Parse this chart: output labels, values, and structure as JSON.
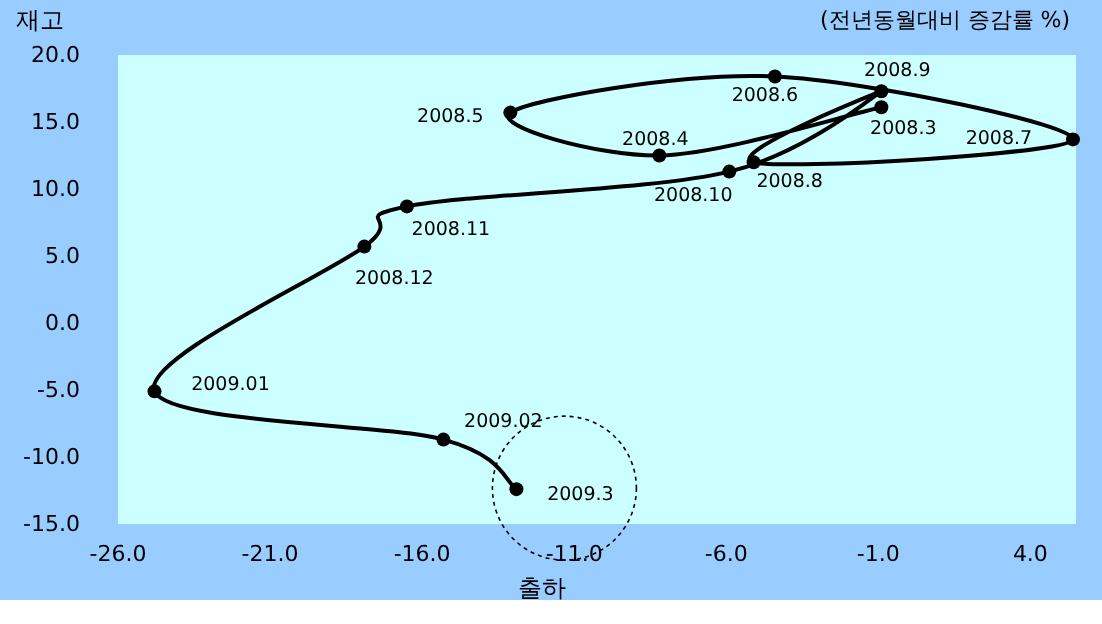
{
  "chart_data": {
    "type": "line",
    "xlabel": "출하",
    "ylabel": "재고",
    "annotations": [
      "(전년동월대비 증감률 %)",
      {
        "text": "2008.3",
        "x": -0.9,
        "y": 16.1
      },
      {
        "text": "2008.4",
        "x": -8.2,
        "y": 12.5
      },
      {
        "text": "2008.5",
        "x": -13.1,
        "y": 15.7
      },
      {
        "text": "2008.6",
        "x": -4.4,
        "y": 18.4
      },
      {
        "text": "2008.7",
        "x": 5.4,
        "y": 13.7
      },
      {
        "text": "2008.8",
        "x": -5.1,
        "y": 12.0
      },
      {
        "text": "2008.9",
        "x": -0.9,
        "y": 17.3
      },
      {
        "text": "2008.10",
        "x": -5.9,
        "y": 11.3
      },
      {
        "text": "2008.11",
        "x": -16.5,
        "y": 8.7
      },
      {
        "text": "2008.12",
        "x": -17.9,
        "y": 5.7
      },
      {
        "text": "2009.01",
        "x": -24.8,
        "y": -5.1
      },
      {
        "text": "2009.02",
        "x": -15.3,
        "y": -8.7
      },
      {
        "text": "2009.3",
        "x": -12.9,
        "y": -12.4
      }
    ],
    "series": [
      {
        "color": "#000000",
        "x": [
          -0.9,
          -8.2,
          -13.1,
          -4.4,
          5.4,
          -5.1,
          -0.9,
          -5.9,
          -16.5,
          -17.9,
          -24.8,
          -15.3,
          -12.9
        ],
        "values": [
          16.1,
          12.5,
          15.7,
          18.4,
          13.7,
          12.0,
          17.3,
          11.3,
          8.7,
          5.7,
          -5.1,
          -8.7,
          -12.4
        ]
      }
    ],
    "xlim": [
      -26,
      5.5
    ],
    "ylim": [
      -15,
      20
    ],
    "xticks": [
      {
        "value": -26,
        "label": "-26.0"
      },
      {
        "value": -21,
        "label": "-21.0"
      },
      {
        "value": -16,
        "label": "-16.0"
      },
      {
        "value": -11,
        "label": "-11.0"
      },
      {
        "value": -6,
        "label": "-6.0"
      },
      {
        "value": -1,
        "label": "-1.0"
      },
      {
        "value": 4,
        "label": "4.0"
      }
    ],
    "yticks": [
      {
        "value": -15,
        "label": "-15.0"
      },
      {
        "value": -10,
        "label": "-10.0"
      },
      {
        "value": -5,
        "label": "-5.0"
      },
      {
        "value": 0,
        "label": "0.0"
      },
      {
        "value": 5,
        "label": "5.0"
      },
      {
        "value": 10,
        "label": "10.0"
      },
      {
        "value": 15,
        "label": "15.0"
      },
      {
        "value": 20,
        "label": "20.0"
      }
    ],
    "marker": "circle",
    "line_style": "solid",
    "grid": false
  }
}
